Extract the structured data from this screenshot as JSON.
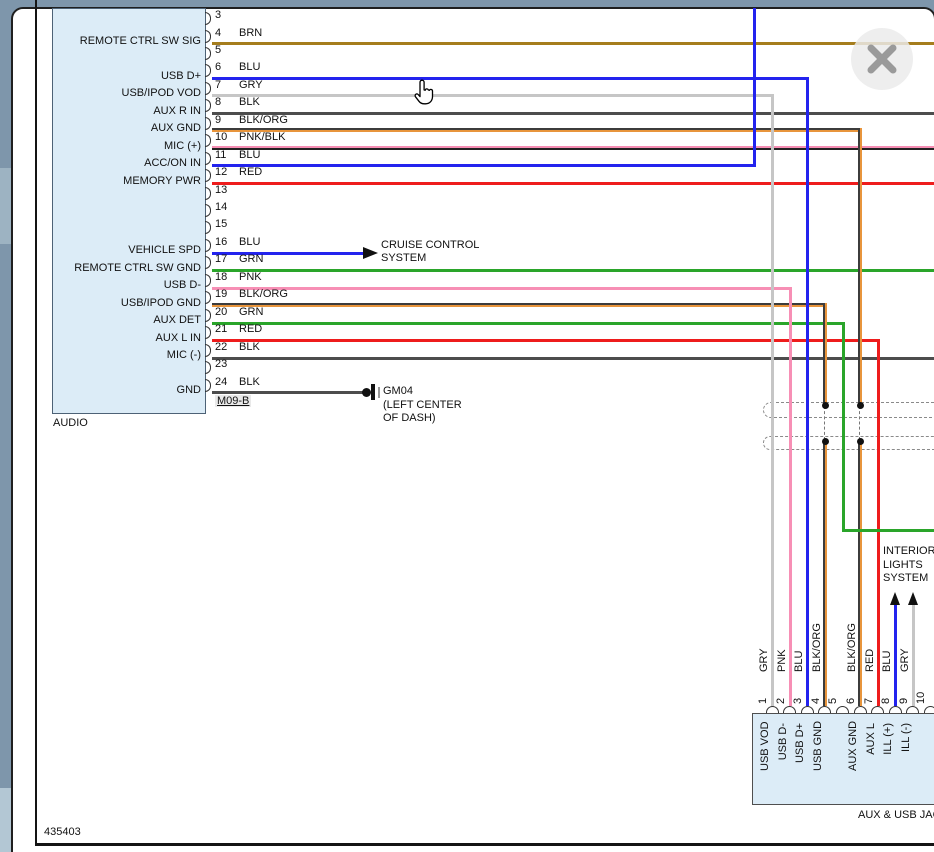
{
  "ui_colors": {
    "chrome": "#7e96ab",
    "panel_bg": "#ffffff",
    "connector_fill": "#dcecf7",
    "frame_border": "#141414",
    "dashed_connector_gray": "#8a8a8a"
  },
  "wire_colors": {
    "BRN": "#a57d1d",
    "BLU": "#2323ee",
    "GRY": "#c6c6c6",
    "BLK": "#4d4d4d",
    "RED": "#ee1c1c",
    "GRN": "#2aa52a",
    "PNK": "#f78fb5",
    "ORG": "#e8953c",
    "BLK_STRIPE": "#3c3c3c"
  },
  "audio_connector": {
    "label": "AUDIO",
    "code": "M09-B",
    "pins": [
      {
        "pin": "3",
        "color": "",
        "label": ""
      },
      {
        "pin": "4",
        "color": "BRN",
        "label": "REMOTE CTRL SW SIG"
      },
      {
        "pin": "5",
        "color": "",
        "label": ""
      },
      {
        "pin": "6",
        "color": "BLU",
        "label": "USB D+"
      },
      {
        "pin": "7",
        "color": "GRY",
        "label": "USB/IPOD VOD"
      },
      {
        "pin": "8",
        "color": "BLK",
        "label": "AUX R IN"
      },
      {
        "pin": "9",
        "color": "BLK/ORG",
        "label": "AUX GND"
      },
      {
        "pin": "10",
        "color": "PNK/BLK",
        "label": "MIC (+)"
      },
      {
        "pin": "11",
        "color": "BLU",
        "label": "ACC/ON IN"
      },
      {
        "pin": "12",
        "color": "RED",
        "label": "MEMORY PWR"
      },
      {
        "pin": "13",
        "color": "",
        "label": ""
      },
      {
        "pin": "14",
        "color": "",
        "label": ""
      },
      {
        "pin": "15",
        "color": "",
        "label": ""
      },
      {
        "pin": "16",
        "color": "BLU",
        "label": "VEHICLE SPD"
      },
      {
        "pin": "17",
        "color": "GRN",
        "label": "REMOTE CTRL SW GND"
      },
      {
        "pin": "18",
        "color": "PNK",
        "label": "USB D-"
      },
      {
        "pin": "19",
        "color": "BLK/ORG",
        "label": "USB/IPOD GND"
      },
      {
        "pin": "20",
        "color": "GRN",
        "label": "AUX DET"
      },
      {
        "pin": "21",
        "color": "RED",
        "label": "AUX L IN"
      },
      {
        "pin": "22",
        "color": "BLK",
        "label": "MIC (-)"
      },
      {
        "pin": "23",
        "color": "",
        "label": ""
      },
      {
        "pin": "24",
        "color": "BLK",
        "label": "GND"
      }
    ]
  },
  "aux_usb_connector": {
    "label": "AUX & USB JAC",
    "pins": [
      {
        "pin": "1",
        "color": "GRY",
        "label": "USB VOD"
      },
      {
        "pin": "2",
        "color": "PNK",
        "label": "USB D-"
      },
      {
        "pin": "3",
        "color": "BLU",
        "label": "USB D+"
      },
      {
        "pin": "4",
        "color": "BLK/ORG",
        "label": "USB GND"
      },
      {
        "pin": "5",
        "color": "",
        "label": ""
      },
      {
        "pin": "6",
        "color": "BLK/ORG",
        "label": "AUX GND"
      },
      {
        "pin": "7",
        "color": "RED",
        "label": "AUX L"
      },
      {
        "pin": "8",
        "color": "BLU",
        "label": "ILL (+)"
      },
      {
        "pin": "9",
        "color": "GRY",
        "label": "ILL (-)"
      },
      {
        "pin": "10",
        "color": "",
        "label": ""
      }
    ]
  },
  "annotations": {
    "cruise_line1": "CRUISE CONTROL",
    "cruise_line2": "SYSTEM",
    "ground_code": "GM04",
    "ground_loc1": "(LEFT CENTER",
    "ground_loc2": "OF DASH)",
    "interior_line1": "INTERIOR",
    "interior_line2": "LIGHTS",
    "interior_line3": "SYSTEM",
    "doc_number": "435403"
  }
}
